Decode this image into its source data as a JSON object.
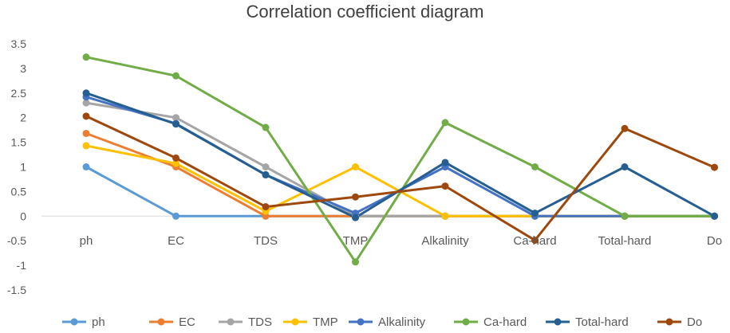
{
  "chart_data": {
    "type": "line",
    "title": "Correlation coefficient diagram",
    "xlabel": "",
    "ylabel": "",
    "categories": [
      "ph",
      "EC",
      "TDS",
      "TMP",
      "Alkalinity",
      "Ca-hard",
      "Total-hard",
      "Do"
    ],
    "y_ticks": [
      "3.5",
      "3",
      "2.5",
      "2",
      "1.5",
      "1",
      "0.5",
      "0",
      "-0.5",
      "-1",
      "-1.5"
    ],
    "ylim": [
      -1.5,
      3.5
    ],
    "grid": false,
    "legend_position": "bottom",
    "series": [
      {
        "name": "ph",
        "color": "#5B9BD5",
        "values": [
          1,
          0,
          0,
          0,
          0,
          0,
          0,
          0
        ]
      },
      {
        "name": "EC",
        "color": "#ED7D31",
        "values": [
          1.68,
          1,
          0,
          0,
          0,
          0,
          0,
          0
        ]
      },
      {
        "name": "TDS",
        "color": "#A5A5A5",
        "values": [
          2.3,
          2.0,
          1.0,
          0,
          0,
          0,
          0,
          0
        ]
      },
      {
        "name": "TMP",
        "color": "#FFC000",
        "values": [
          1.43,
          1.07,
          0.1,
          1.0,
          0,
          0,
          0,
          0
        ]
      },
      {
        "name": "Alkalinity",
        "color": "#4472C4",
        "values": [
          2.42,
          1.88,
          0.84,
          0.06,
          1.0,
          0,
          0,
          0
        ]
      },
      {
        "name": "Ca-hard",
        "color": "#70AD47",
        "values": [
          3.23,
          2.85,
          1.8,
          -0.93,
          1.9,
          1.0,
          0,
          0
        ]
      },
      {
        "name": "Total-hard",
        "color": "#255E91",
        "values": [
          2.5,
          1.87,
          0.84,
          -0.03,
          1.09,
          0.06,
          1.0,
          0
        ]
      },
      {
        "name": "Do",
        "color": "#9E480E",
        "values": [
          2.03,
          1.18,
          0.19,
          0.39,
          0.61,
          -0.49,
          1.78,
          0.99
        ]
      }
    ]
  }
}
